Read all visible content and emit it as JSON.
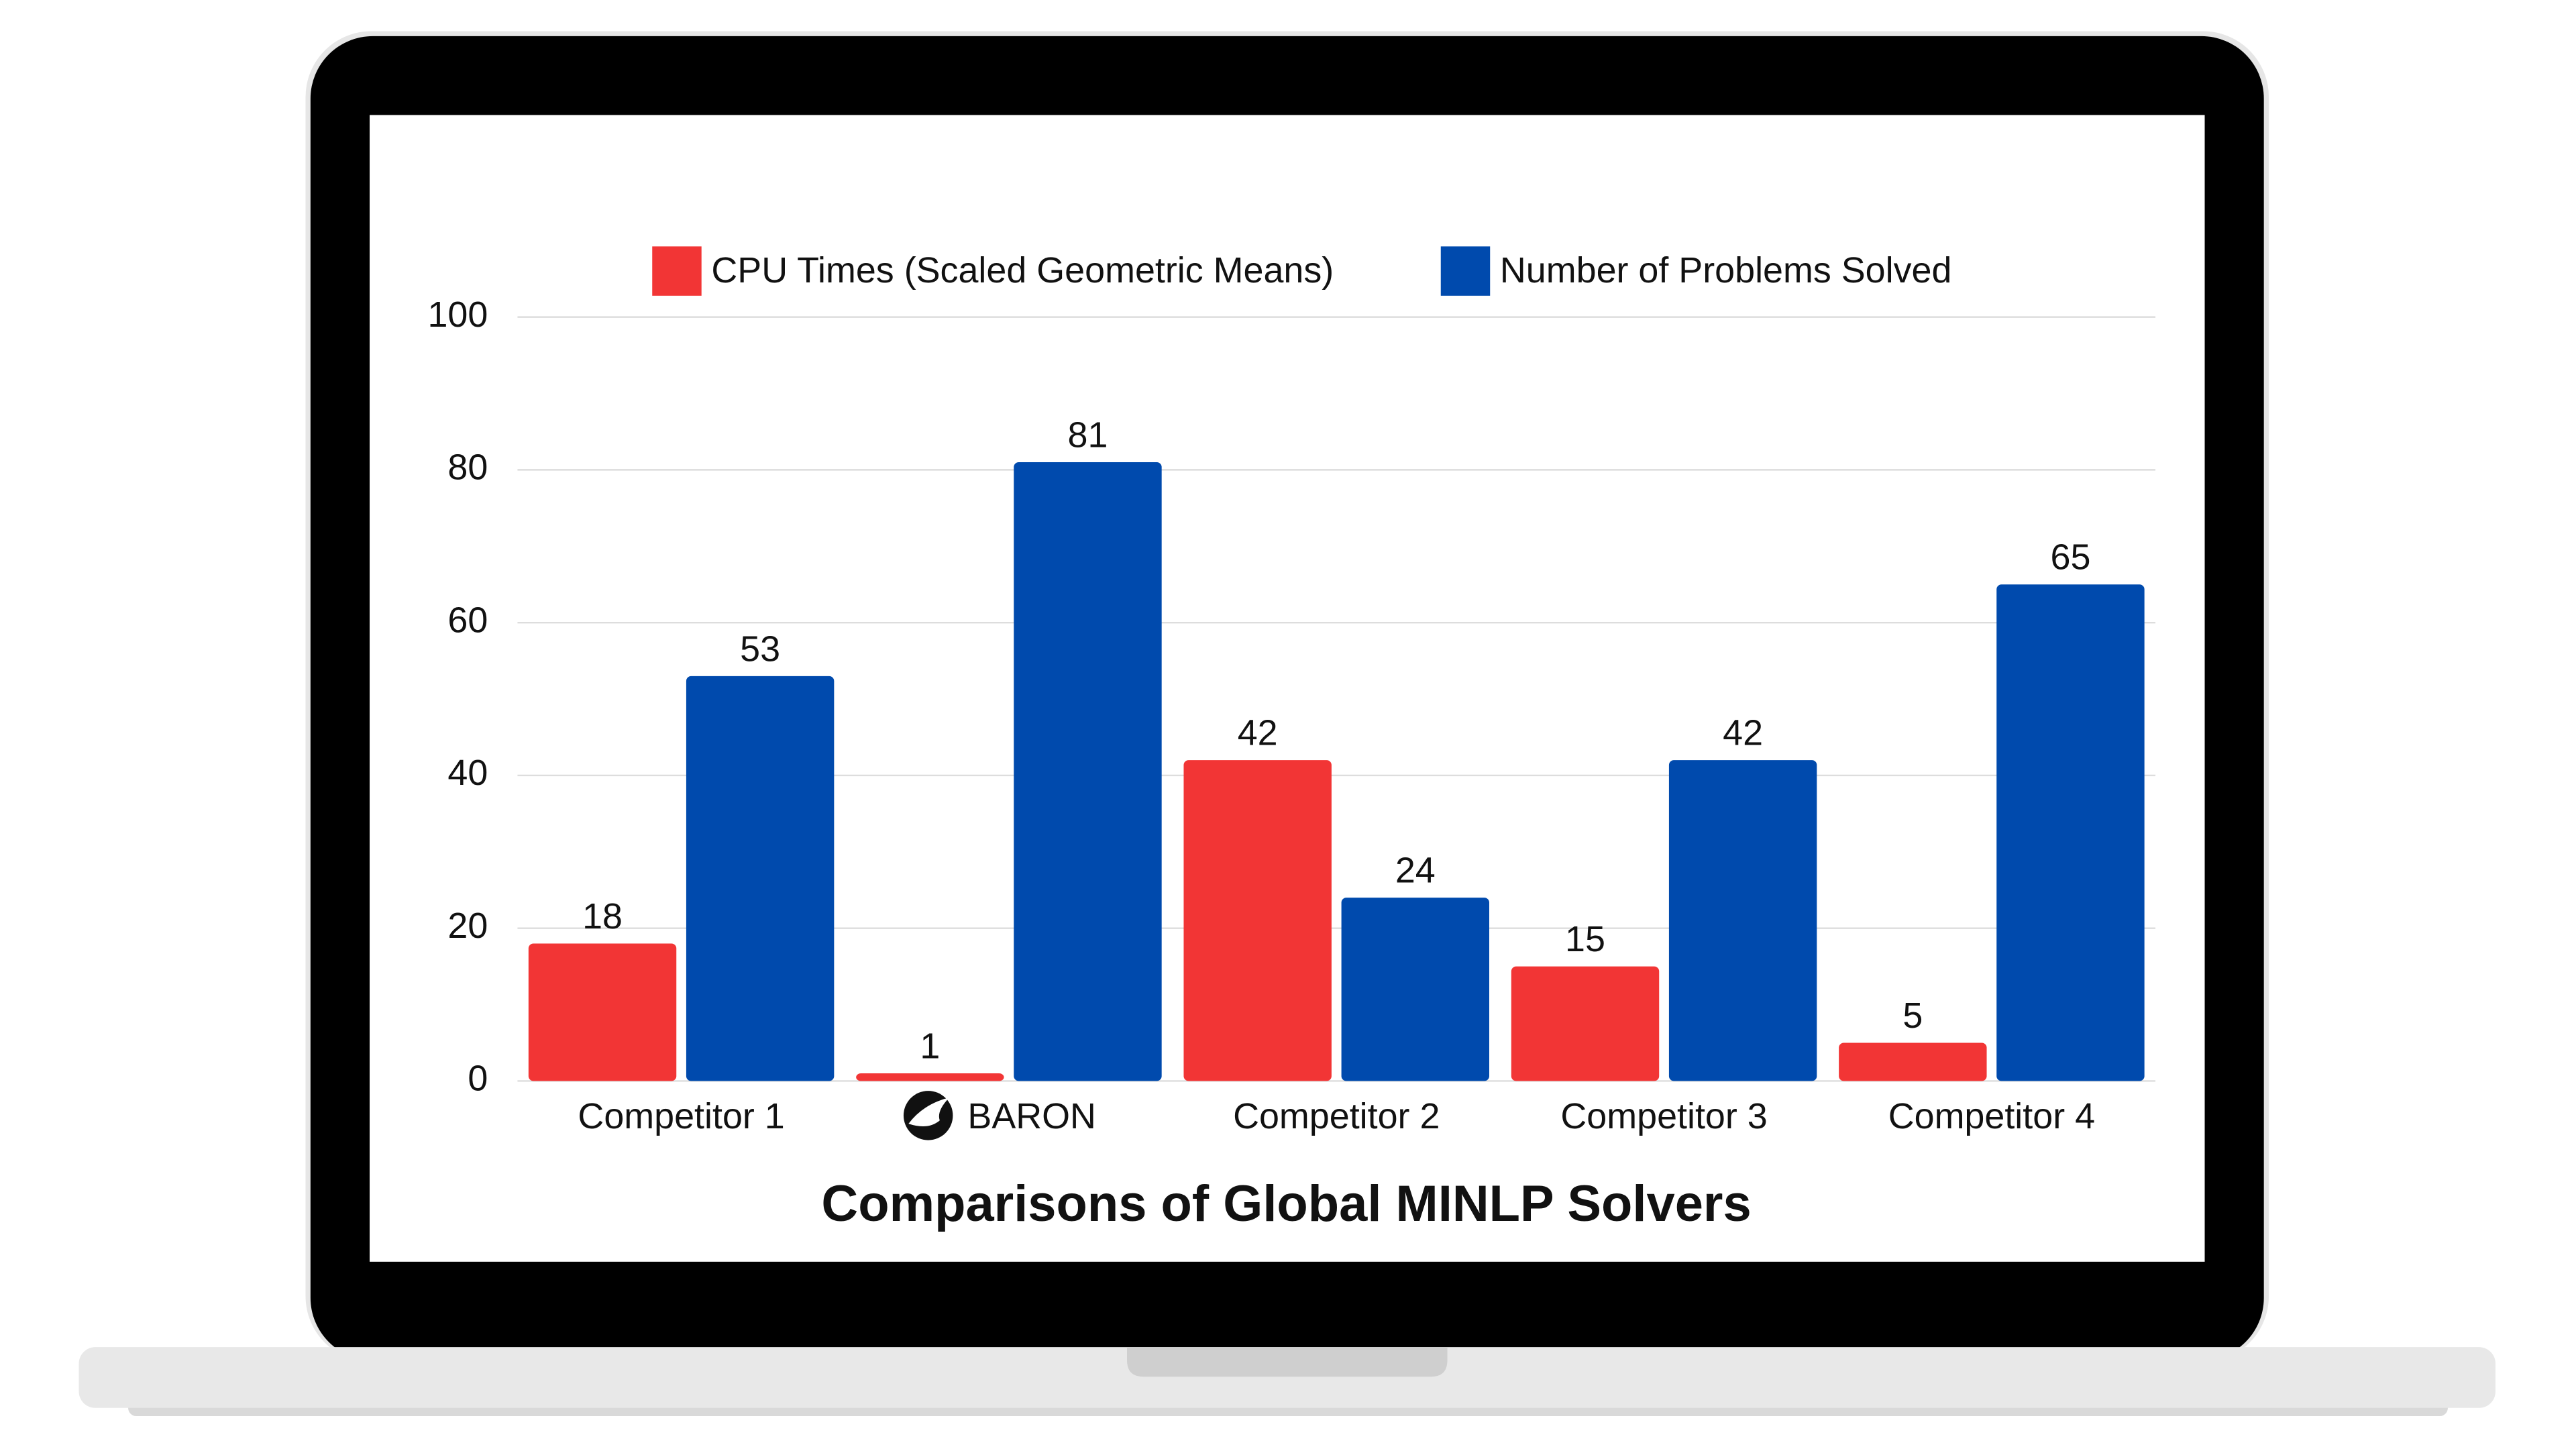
{
  "chart_data": {
    "type": "bar",
    "title": "Comparisons of Global MINLP Solvers",
    "categories": [
      "Competitor 1",
      "BARON",
      "Competitor 2",
      "Competitor 3",
      "Competitor 4"
    ],
    "series": [
      {
        "name": "CPU Times (Scaled Geometric Means)",
        "color": "#f23535",
        "values": [
          18,
          1,
          42,
          15,
          5
        ]
      },
      {
        "name": "Number of Problems Solved",
        "color": "#004aad",
        "values": [
          53,
          81,
          24,
          42,
          65
        ]
      }
    ],
    "ylim": [
      0,
      100
    ],
    "yticks": [
      0,
      20,
      40,
      60,
      80,
      100
    ],
    "grid": true,
    "legend": "top"
  }
}
